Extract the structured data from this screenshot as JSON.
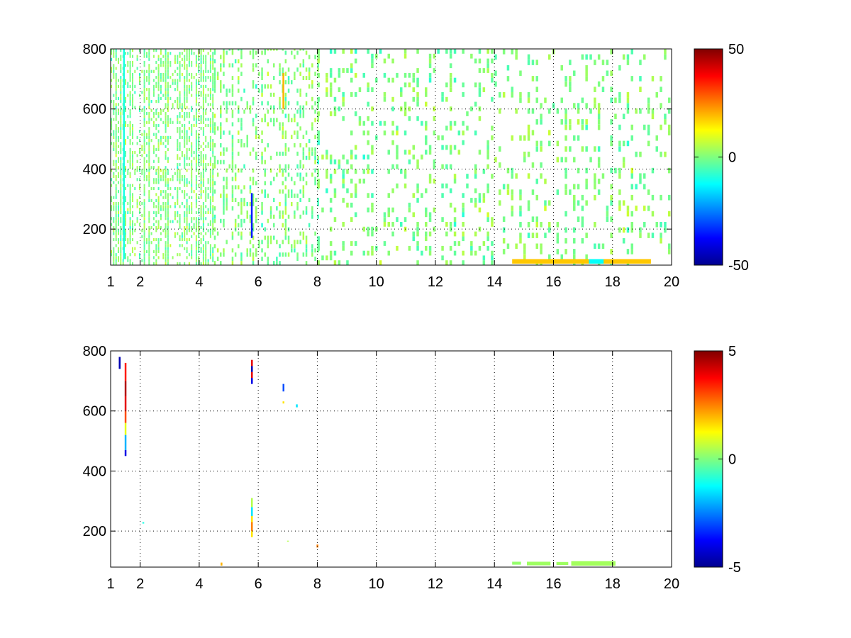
{
  "chart_data": [
    {
      "type": "heatmap",
      "title": "",
      "xlabel": "",
      "ylabel": "",
      "xlim": [
        1,
        20
      ],
      "ylim": [
        80,
        800
      ],
      "x_ticks": [
        1,
        2,
        4,
        6,
        8,
        10,
        12,
        14,
        16,
        18,
        20
      ],
      "y_ticks": [
        200,
        400,
        600,
        800
      ],
      "grid": true,
      "colormap": "jet",
      "clim": [
        -50,
        50
      ],
      "colorbar_ticks": [
        50,
        0,
        -50
      ],
      "dense_columns": [
        {
          "from": 1,
          "to": 4.5,
          "density": 0.55,
          "step": 0.08,
          "cell_h": 10,
          "mean": 0,
          "spread": 10
        },
        {
          "from": 4.5,
          "to": 8,
          "density": 0.32,
          "step": 0.1,
          "cell_h": 14,
          "mean": 0,
          "spread": 10
        },
        {
          "from": 8,
          "to": 14,
          "density": 0.24,
          "step": 0.14,
          "cell_h": 16,
          "mean": 0,
          "spread": 10
        },
        {
          "from": 14,
          "to": 20,
          "density": 0.2,
          "step": 0.14,
          "cell_h": 18,
          "mean": 0,
          "spread": 10
        }
      ],
      "features": [
        {
          "x": 5.78,
          "y_from": 170,
          "y_to": 320,
          "value": -35
        },
        {
          "x": 1.45,
          "y_from": 100,
          "y_to": 800,
          "value": -10
        },
        {
          "x": 6.85,
          "y_from": 600,
          "y_to": 720,
          "value": 20
        },
        {
          "x_from": 14.6,
          "x_to": 19.3,
          "y_from": 85,
          "y_to": 100,
          "value": 18
        },
        {
          "x_from": 17.2,
          "x_to": 17.7,
          "y_from": 85,
          "y_to": 100,
          "value": -12
        }
      ]
    },
    {
      "type": "heatmap",
      "title": "",
      "xlabel": "",
      "ylabel": "",
      "xlim": [
        1,
        20
      ],
      "ylim": [
        80,
        800
      ],
      "x_ticks": [
        1,
        2,
        4,
        6,
        8,
        10,
        12,
        14,
        16,
        18,
        20
      ],
      "y_ticks": [
        200,
        400,
        600,
        800
      ],
      "grid": true,
      "colormap": "jet",
      "clim": [
        -5,
        5
      ],
      "colorbar_ticks": [
        5,
        0,
        -5
      ],
      "cells": [
        {
          "x": 1.5,
          "y_from": 450,
          "y_to": 470,
          "value": -4
        },
        {
          "x": 1.5,
          "y_from": 470,
          "y_to": 520,
          "value": -2
        },
        {
          "x": 1.5,
          "y_from": 520,
          "y_to": 560,
          "value": 1
        },
        {
          "x": 1.5,
          "y_from": 560,
          "y_to": 600,
          "value": 3
        },
        {
          "x": 1.5,
          "y_from": 600,
          "y_to": 650,
          "value": 4
        },
        {
          "x": 1.5,
          "y_from": 650,
          "y_to": 700,
          "value": 4.5
        },
        {
          "x": 1.5,
          "y_from": 700,
          "y_to": 760,
          "value": 3.5
        },
        {
          "x": 1.3,
          "y_from": 740,
          "y_to": 780,
          "value": -4.5
        },
        {
          "x": 5.78,
          "y_from": 690,
          "y_to": 710,
          "value": -4
        },
        {
          "x": 5.78,
          "y_from": 710,
          "y_to": 730,
          "value": 4
        },
        {
          "x": 5.78,
          "y_from": 730,
          "y_to": 750,
          "value": -4.5
        },
        {
          "x": 5.78,
          "y_from": 750,
          "y_to": 770,
          "value": 4
        },
        {
          "x": 5.78,
          "y_from": 180,
          "y_to": 200,
          "value": 1.5
        },
        {
          "x": 5.78,
          "y_from": 200,
          "y_to": 230,
          "value": 2.5
        },
        {
          "x": 5.78,
          "y_from": 230,
          "y_to": 250,
          "value": 1.5
        },
        {
          "x": 5.78,
          "y_from": 250,
          "y_to": 280,
          "value": -1.5
        },
        {
          "x": 5.78,
          "y_from": 280,
          "y_to": 310,
          "value": 0.5
        },
        {
          "x": 6.85,
          "y_from": 665,
          "y_to": 690,
          "value": -3
        },
        {
          "x": 6.85,
          "y_from": 625,
          "y_to": 632,
          "value": 1.5
        },
        {
          "x": 7.3,
          "y_from": 612,
          "y_to": 622,
          "value": -1.5
        },
        {
          "x": 8.0,
          "y_from": 145,
          "y_to": 155,
          "value": 2.5
        },
        {
          "x": 4.75,
          "y_from": 85,
          "y_to": 95,
          "value": 2
        },
        {
          "x": 2.1,
          "y_from": 225,
          "y_to": 230,
          "value": -1
        },
        {
          "x": 7.0,
          "y_from": 165,
          "y_to": 168,
          "value": 0.5
        }
      ],
      "bands": [
        {
          "x_from": 14.6,
          "x_to": 14.9,
          "y_from": 88,
          "y_to": 98,
          "value": 0.2
        },
        {
          "x_from": 15.1,
          "x_to": 15.9,
          "y_from": 86,
          "y_to": 98,
          "value": 0.3
        },
        {
          "x_from": 16.1,
          "x_to": 16.5,
          "y_from": 87,
          "y_to": 97,
          "value": 0.3
        },
        {
          "x_from": 16.6,
          "x_to": 18.1,
          "y_from": 85,
          "y_to": 100,
          "value": 0.35
        }
      ]
    }
  ]
}
